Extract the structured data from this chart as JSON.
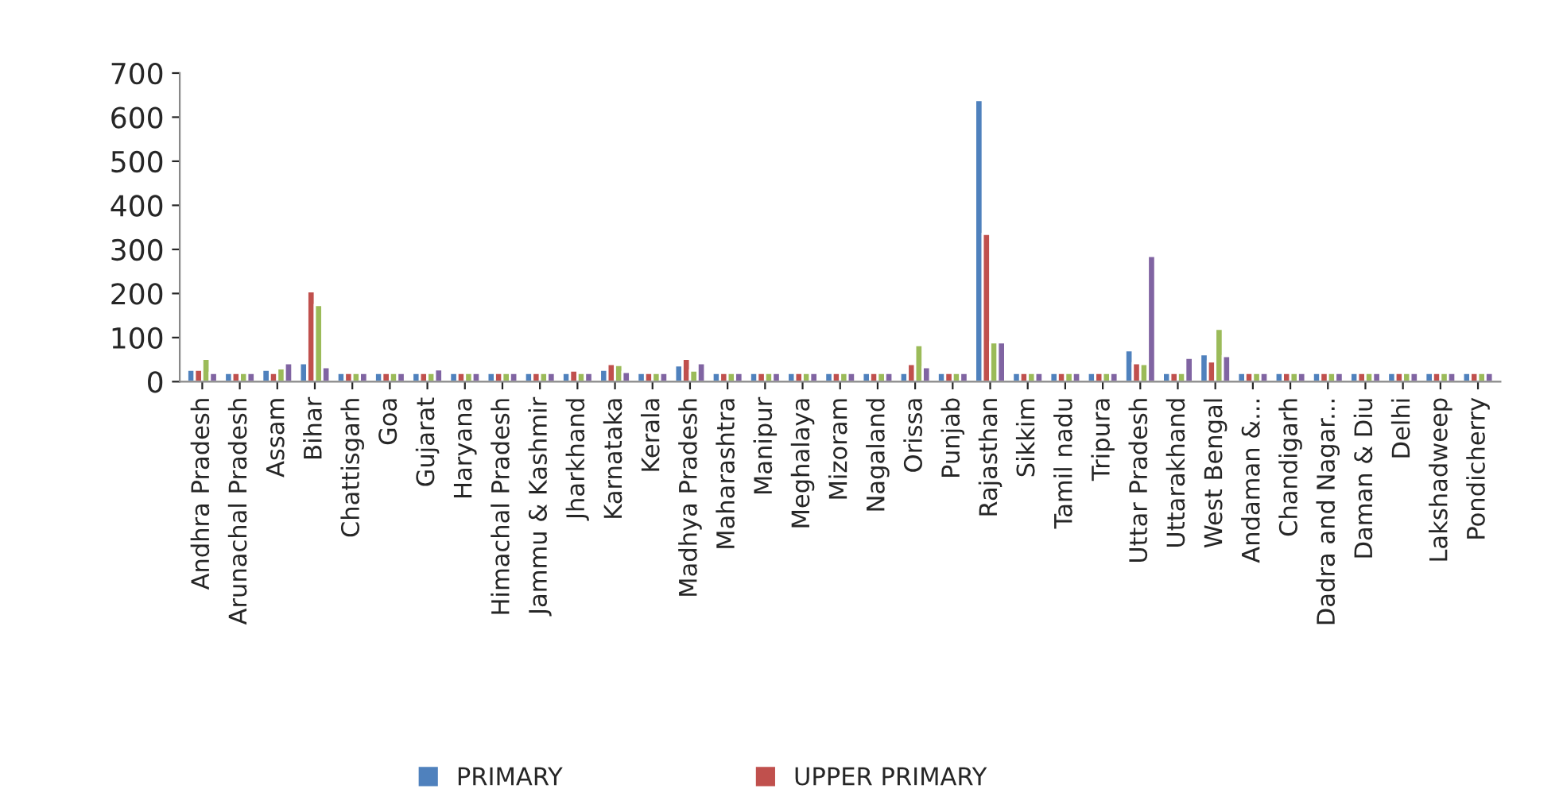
{
  "chart_data": {
    "type": "bar",
    "categories": [
      "Andhra Pradesh",
      "Arunachal Pradesh",
      "Assam",
      "Bihar",
      "Chattisgarh",
      "Goa",
      "Gujarat",
      "Haryana",
      "Himachal Pradesh",
      "Jammu & Kashmir",
      "Jharkhand",
      "Karnataka",
      "Kerala",
      "Madhya Pradesh",
      "Maharashtra",
      "Manipur",
      "Meghalaya",
      "Mizoram",
      "Nagaland",
      "Orissa",
      "Punjab",
      "Rajasthan",
      "Sikkim",
      "Tamil nadu",
      "Tripura",
      "Uttar Pradesh",
      "Uttarakhand",
      "West Bengal",
      "Andaman &...",
      "Chandigarh",
      "Dadra and Nagar...",
      "Daman & Diu",
      "Delhi",
      "Lakshadweep",
      "Pondicherry"
    ],
    "series": [
      {
        "name": "PRIMARY",
        "color": "#4f81bd",
        "values": [
          27,
          20,
          27,
          42,
          20,
          20,
          20,
          20,
          20,
          20,
          20,
          27,
          20,
          37,
          20,
          20,
          20,
          20,
          20,
          20,
          20,
          639,
          20,
          20,
          20,
          71,
          20,
          62,
          20,
          20,
          20,
          20,
          20,
          20,
          20
        ]
      },
      {
        "name": "UPPER PRIMARY",
        "color": "#c0504d",
        "values": [
          27,
          20,
          20,
          205,
          20,
          20,
          20,
          20,
          20,
          20,
          25,
          40,
          20,
          52,
          20,
          20,
          20,
          20,
          20,
          40,
          20,
          335,
          20,
          20,
          20,
          42,
          20,
          46,
          20,
          20,
          20,
          20,
          20,
          20,
          20
        ]
      },
      {
        "color": "#9bbb59",
        "values": [
          52,
          20,
          30,
          174,
          20,
          20,
          20,
          20,
          20,
          20,
          20,
          38,
          20,
          25,
          20,
          20,
          20,
          20,
          20,
          83,
          20,
          89,
          20,
          20,
          20,
          40,
          20,
          120,
          20,
          20,
          20,
          20,
          20,
          20,
          20
        ]
      },
      {
        "color": "#8064a2",
        "values": [
          20,
          20,
          42,
          33,
          20,
          20,
          28,
          20,
          20,
          20,
          20,
          22,
          20,
          42,
          20,
          20,
          20,
          20,
          20,
          33,
          20,
          89,
          20,
          20,
          20,
          285,
          54,
          58,
          20,
          20,
          20,
          20,
          20,
          20,
          20
        ]
      }
    ],
    "ylim": [
      0,
      700
    ],
    "yticks": [
      0,
      100,
      200,
      300,
      400,
      500,
      600,
      700
    ],
    "grid": false,
    "legend": "bottom"
  }
}
